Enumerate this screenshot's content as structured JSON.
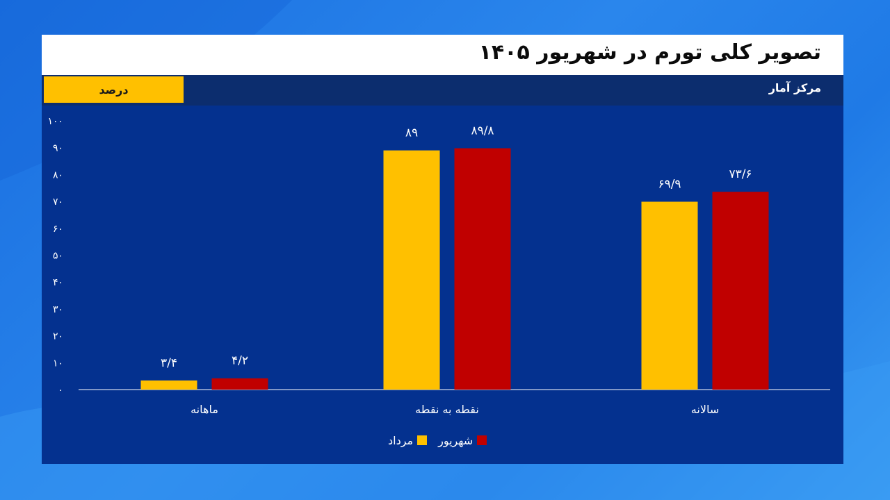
{
  "header": {
    "title": "تصویر کلی تورم در شهریور ۱۴۰۵",
    "unit": "درصد",
    "source": "مرکز آمار"
  },
  "colors": {
    "mordad": "#ffc000",
    "shahrivar": "#c00000",
    "panel": "#04318f",
    "axis": "#ffffff"
  },
  "chart_data": {
    "type": "bar",
    "categories": [
      "ماهانه",
      "نقطه به نقطه",
      "سالانه"
    ],
    "series": [
      {
        "name": "مرداد",
        "values": [
          3.4,
          89,
          69.9
        ],
        "labels": [
          "۳/۴",
          "۸۹",
          "۶۹/۹"
        ]
      },
      {
        "name": "شهریور",
        "values": [
          4.2,
          89.8,
          73.6
        ],
        "labels": [
          "۴/۲",
          "۸۹/۸",
          "۷۳/۶"
        ]
      }
    ],
    "yticks": [
      "۰",
      "۱۰",
      "۲۰",
      "۳۰",
      "۴۰",
      "۵۰",
      "۶۰",
      "۷۰",
      "۸۰",
      "۹۰",
      "۱۰۰"
    ],
    "ylim": [
      0,
      100
    ],
    "grid": false,
    "legend_position": "bottom-center"
  }
}
